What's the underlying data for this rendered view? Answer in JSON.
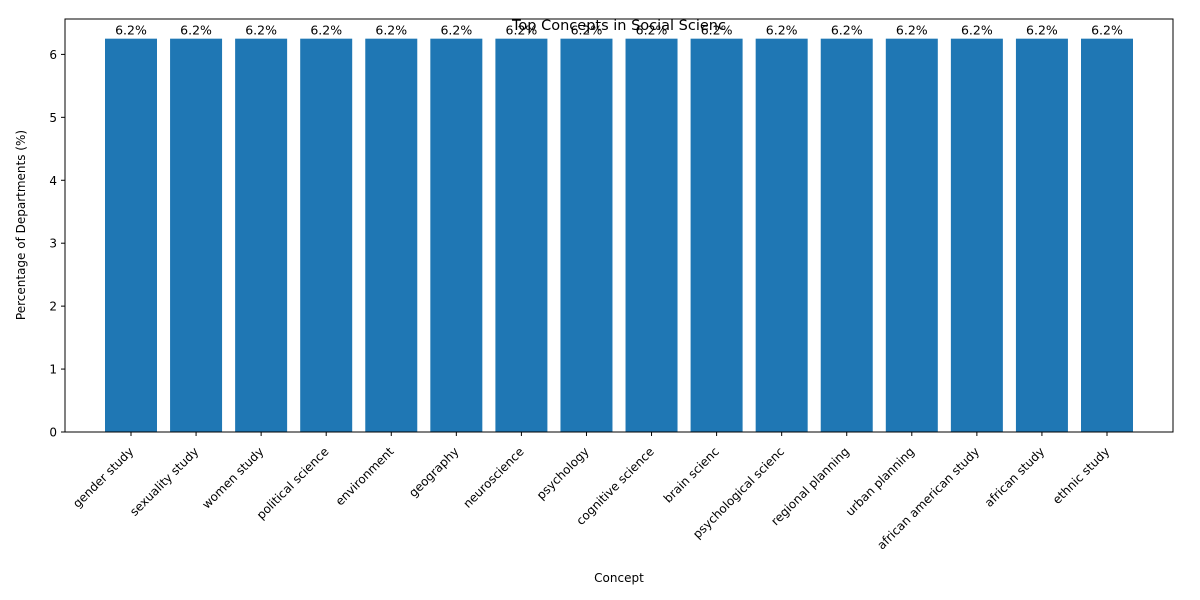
{
  "chart_data": {
    "type": "bar",
    "title": "Top Concepts in Social Scienc",
    "xlabel": "Concept",
    "ylabel": "Percentage of Departments (%)",
    "categories": [
      "gender study",
      "sexuality study",
      "women study",
      "political science",
      "environment",
      "geography",
      "neuroscience",
      "psychology",
      "cognitive science",
      "brain scienc",
      "psychological scienc",
      "regional planning",
      "urban planning",
      "african american study",
      "african study",
      "ethnic study"
    ],
    "values": [
      6.25,
      6.25,
      6.25,
      6.25,
      6.25,
      6.25,
      6.25,
      6.25,
      6.25,
      6.25,
      6.25,
      6.25,
      6.25,
      6.25,
      6.25,
      6.25
    ],
    "data_labels": [
      "6.2%",
      "6.2%",
      "6.2%",
      "6.2%",
      "6.2%",
      "6.2%",
      "6.2%",
      "6.2%",
      "6.2%",
      "6.2%",
      "6.2%",
      "6.2%",
      "6.2%",
      "6.2%",
      "6.2%",
      "6.2%"
    ],
    "yticks": [
      0,
      1,
      2,
      3,
      4,
      5,
      6
    ],
    "ylim": [
      0,
      6.5625
    ],
    "grid": false,
    "legend": "none",
    "bar_color": "#1f77b4"
  }
}
